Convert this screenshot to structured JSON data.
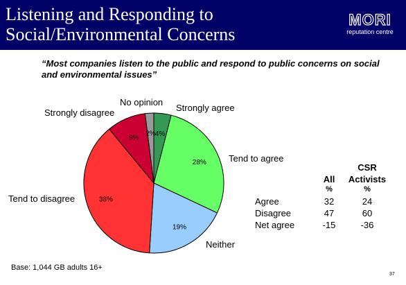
{
  "header": {
    "title_line1": "Listening and Responding to",
    "title_line2": "Social/Environmental Concerns",
    "logo_word": "MORI",
    "logo_sub": "reputation centre"
  },
  "quote": "“Most companies listen to the public and respond to public concerns on social and environmental issues”",
  "colors": {
    "header_bg": "#000066",
    "strongly_agree": "#339955",
    "tend_to_agree": "#66ff66",
    "neither": "#99ccff",
    "tend_to_disagree": "#ff3333",
    "strongly_disagree": "#cc0033",
    "no_opinion": "#999999"
  },
  "chart_data": {
    "type": "pie",
    "slices": [
      {
        "label": "Strongly agree",
        "value": 4,
        "value_label": "4%",
        "color": "#339955"
      },
      {
        "label": "Tend to agree",
        "value": 28,
        "value_label": "28%",
        "color": "#66ff66"
      },
      {
        "label": "Neither",
        "value": 19,
        "value_label": "19%",
        "color": "#99ccff"
      },
      {
        "label": "Tend to disagree",
        "value": 38,
        "value_label": "38%",
        "color": "#ff3333"
      },
      {
        "label": "Strongly disagree",
        "value": 9,
        "value_label": "9%",
        "color": "#cc0033"
      },
      {
        "label": "No opinion",
        "value": 2,
        "value_label": "2%",
        "color": "#999999"
      }
    ]
  },
  "table": {
    "col_all": "All",
    "col_csr_line1": "CSR",
    "col_csr_line2": "Activists",
    "unit_all": "%",
    "unit_csr": "%",
    "rows": [
      {
        "label": "Agree",
        "all": "32",
        "csr": "24"
      },
      {
        "label": "Disagree",
        "all": "47",
        "csr": "60"
      },
      {
        "label": "Net agree",
        "all": "-15",
        "csr": "-36"
      }
    ]
  },
  "footer": {
    "base": "Base: 1,044 GB adults 16+",
    "page": "37"
  }
}
